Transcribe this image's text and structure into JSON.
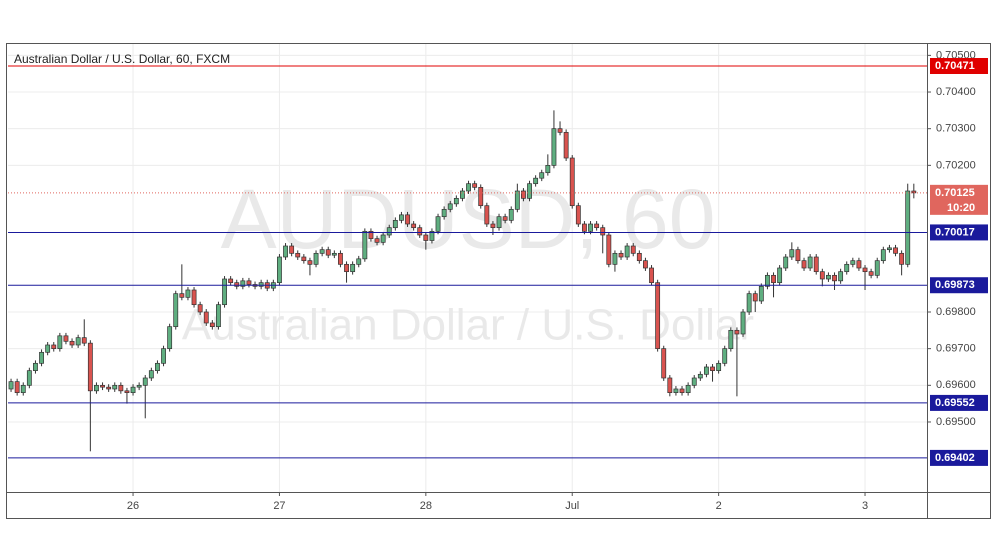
{
  "chart_data": {
    "type": "candlestick",
    "title": "Australian Dollar / U.S. Dollar, 60, FXCM",
    "watermark": "AUDUSD, 60",
    "watermark_subtitle": "Australian Dollar / U.S. Dollar",
    "up_color": "#5fae80",
    "down_color": "#d9534f",
    "ylim": [
      0.69309,
      0.70531
    ],
    "xlim": [
      -0.5,
      150.16
    ],
    "yticks": [
      {
        "value": 0.705,
        "label": "0.70500"
      },
      {
        "value": 0.704,
        "label": "0.70400"
      },
      {
        "value": 0.703,
        "label": "0.70300"
      },
      {
        "value": 0.702,
        "label": "0.70200"
      },
      {
        "value": 0.698,
        "label": "0.69800"
      },
      {
        "value": 0.697,
        "label": "0.69700"
      },
      {
        "value": 0.696,
        "label": "0.69600"
      },
      {
        "value": 0.695,
        "label": "0.69500"
      }
    ],
    "xticks": [
      {
        "value": 20,
        "label": "26"
      },
      {
        "value": 44,
        "label": "27"
      },
      {
        "value": 68,
        "label": "28"
      },
      {
        "value": 92,
        "label": "Jul"
      },
      {
        "value": 116,
        "label": "2"
      },
      {
        "value": 140,
        "label": "3"
      }
    ],
    "grid": true,
    "levels": [
      {
        "value": 0.70471,
        "color": "#e00000"
      },
      {
        "value": 0.70017,
        "color": "#1a1a9c"
      },
      {
        "value": 0.69873,
        "color": "#1a1a9c"
      },
      {
        "value": 0.69552,
        "color": "#1a1a9c"
      },
      {
        "value": 0.69402,
        "color": "#1a1a9c"
      }
    ],
    "last_price": 0.70125,
    "last_price_color": "#e0665e",
    "countdown": "10:20",
    "ohlc": [
      [
        0.6959,
        0.69618,
        0.69582,
        0.6961
      ],
      [
        0.6961,
        0.69618,
        0.69572,
        0.6958
      ],
      [
        0.6958,
        0.69608,
        0.69572,
        0.696
      ],
      [
        0.696,
        0.69648,
        0.69592,
        0.6964
      ],
      [
        0.6964,
        0.69668,
        0.69632,
        0.6966
      ],
      [
        0.6966,
        0.69698,
        0.69652,
        0.6969
      ],
      [
        0.6969,
        0.69718,
        0.69682,
        0.6971
      ],
      [
        0.6971,
        0.69718,
        0.69692,
        0.697
      ],
      [
        0.697,
        0.69743,
        0.69692,
        0.69735
      ],
      [
        0.69735,
        0.69743,
        0.69712,
        0.6972
      ],
      [
        0.6972,
        0.69728,
        0.69702,
        0.6971
      ],
      [
        0.6971,
        0.69738,
        0.69702,
        0.6973
      ],
      [
        0.6973,
        0.6978,
        0.69707,
        0.69715
      ],
      [
        0.69715,
        0.69723,
        0.6942,
        0.69585
      ],
      [
        0.69585,
        0.69608,
        0.69577,
        0.696
      ],
      [
        0.696,
        0.69608,
        0.69587,
        0.69595
      ],
      [
        0.69595,
        0.69603,
        0.69582,
        0.6959
      ],
      [
        0.6959,
        0.69608,
        0.69582,
        0.696
      ],
      [
        0.696,
        0.69608,
        0.69577,
        0.69585
      ],
      [
        0.69585,
        0.69593,
        0.6955,
        0.6958
      ],
      [
        0.6958,
        0.69603,
        0.69572,
        0.69595
      ],
      [
        0.69595,
        0.69608,
        0.69587,
        0.696
      ],
      [
        0.696,
        0.69628,
        0.6951,
        0.6962
      ],
      [
        0.6962,
        0.69648,
        0.69612,
        0.6964
      ],
      [
        0.6964,
        0.69668,
        0.69632,
        0.6966
      ],
      [
        0.6966,
        0.69708,
        0.69652,
        0.697
      ],
      [
        0.697,
        0.69768,
        0.69692,
        0.6976
      ],
      [
        0.6976,
        0.69858,
        0.69752,
        0.6985
      ],
      [
        0.6985,
        0.6993,
        0.69832,
        0.6984
      ],
      [
        0.6984,
        0.69868,
        0.69832,
        0.6986
      ],
      [
        0.6986,
        0.69868,
        0.69812,
        0.6982
      ],
      [
        0.6982,
        0.69828,
        0.69792,
        0.698
      ],
      [
        0.698,
        0.69808,
        0.69762,
        0.6977
      ],
      [
        0.6977,
        0.69778,
        0.69752,
        0.6976
      ],
      [
        0.6976,
        0.69828,
        0.69752,
        0.6982
      ],
      [
        0.6982,
        0.69898,
        0.69812,
        0.6989
      ],
      [
        0.6989,
        0.69898,
        0.69872,
        0.6988
      ],
      [
        0.6988,
        0.69888,
        0.69862,
        0.6987
      ],
      [
        0.6987,
        0.69893,
        0.69862,
        0.69885
      ],
      [
        0.69885,
        0.69893,
        0.69867,
        0.69875
      ],
      [
        0.69875,
        0.69883,
        0.69862,
        0.6987
      ],
      [
        0.6987,
        0.69888,
        0.69862,
        0.6988
      ],
      [
        0.6988,
        0.69888,
        0.69857,
        0.69865
      ],
      [
        0.69865,
        0.69888,
        0.69857,
        0.6988
      ],
      [
        0.6988,
        0.69958,
        0.69872,
        0.6995
      ],
      [
        0.6995,
        0.69988,
        0.69942,
        0.6998
      ],
      [
        0.6998,
        0.69988,
        0.69952,
        0.6996
      ],
      [
        0.6996,
        0.69968,
        0.69942,
        0.6995
      ],
      [
        0.6995,
        0.69958,
        0.69932,
        0.6994
      ],
      [
        0.6994,
        0.69948,
        0.699,
        0.6993
      ],
      [
        0.6993,
        0.69968,
        0.69922,
        0.6996
      ],
      [
        0.6996,
        0.69978,
        0.69952,
        0.6997
      ],
      [
        0.6997,
        0.69978,
        0.69947,
        0.69955
      ],
      [
        0.69955,
        0.69968,
        0.69947,
        0.6996
      ],
      [
        0.6996,
        0.69968,
        0.69922,
        0.6993
      ],
      [
        0.6993,
        0.69938,
        0.6988,
        0.6991
      ],
      [
        0.6991,
        0.69938,
        0.69902,
        0.6993
      ],
      [
        0.6993,
        0.69953,
        0.69922,
        0.69945
      ],
      [
        0.69945,
        0.70028,
        0.69937,
        0.7002
      ],
      [
        0.7002,
        0.70028,
        0.69992,
        0.7
      ],
      [
        0.7,
        0.70008,
        0.69982,
        0.6999
      ],
      [
        0.6999,
        0.70018,
        0.69982,
        0.7001
      ],
      [
        0.7001,
        0.70038,
        0.70002,
        0.7003
      ],
      [
        0.7003,
        0.70058,
        0.70022,
        0.7005
      ],
      [
        0.7005,
        0.70073,
        0.70042,
        0.70065
      ],
      [
        0.70065,
        0.70073,
        0.70032,
        0.7004
      ],
      [
        0.7004,
        0.70048,
        0.70022,
        0.7003
      ],
      [
        0.7003,
        0.70038,
        0.70002,
        0.7001
      ],
      [
        0.7001,
        0.70018,
        0.6997,
        0.69995
      ],
      [
        0.69995,
        0.70028,
        0.69987,
        0.7002
      ],
      [
        0.7002,
        0.70068,
        0.70012,
        0.7006
      ],
      [
        0.7006,
        0.70088,
        0.70052,
        0.7008
      ],
      [
        0.7008,
        0.70103,
        0.70072,
        0.70095
      ],
      [
        0.70095,
        0.70118,
        0.70087,
        0.7011
      ],
      [
        0.7011,
        0.70138,
        0.70102,
        0.7013
      ],
      [
        0.7013,
        0.70158,
        0.70122,
        0.7015
      ],
      [
        0.7015,
        0.70158,
        0.70132,
        0.7014
      ],
      [
        0.7014,
        0.70148,
        0.70082,
        0.7009
      ],
      [
        0.7009,
        0.70098,
        0.70032,
        0.7004
      ],
      [
        0.7004,
        0.70048,
        0.7001,
        0.7003
      ],
      [
        0.7003,
        0.70068,
        0.70022,
        0.7006
      ],
      [
        0.7006,
        0.70068,
        0.70042,
        0.7005
      ],
      [
        0.7005,
        0.70088,
        0.70042,
        0.7008
      ],
      [
        0.7008,
        0.7015,
        0.70072,
        0.7013
      ],
      [
        0.7013,
        0.70138,
        0.70102,
        0.7011
      ],
      [
        0.7011,
        0.70158,
        0.70102,
        0.7015
      ],
      [
        0.7015,
        0.70173,
        0.70142,
        0.70165
      ],
      [
        0.70165,
        0.70188,
        0.70157,
        0.7018
      ],
      [
        0.7018,
        0.7023,
        0.70172,
        0.702
      ],
      [
        0.702,
        0.7035,
        0.70192,
        0.703
      ],
      [
        0.703,
        0.7032,
        0.70282,
        0.7029
      ],
      [
        0.7029,
        0.70298,
        0.70212,
        0.7022
      ],
      [
        0.7022,
        0.70228,
        0.70082,
        0.7009
      ],
      [
        0.7009,
        0.70098,
        0.70032,
        0.7004
      ],
      [
        0.7004,
        0.70048,
        0.70012,
        0.7002
      ],
      [
        0.7002,
        0.70048,
        0.70012,
        0.7004
      ],
      [
        0.7004,
        0.70048,
        0.70022,
        0.7003
      ],
      [
        0.7003,
        0.70038,
        0.6996,
        0.7001
      ],
      [
        0.7001,
        0.70018,
        0.69922,
        0.6993
      ],
      [
        0.6993,
        0.69968,
        0.6991,
        0.6996
      ],
      [
        0.6996,
        0.69968,
        0.69942,
        0.6995
      ],
      [
        0.6995,
        0.69988,
        0.69942,
        0.6998
      ],
      [
        0.6998,
        0.69988,
        0.69952,
        0.6996
      ],
      [
        0.6996,
        0.69968,
        0.69932,
        0.6994
      ],
      [
        0.6994,
        0.69948,
        0.69912,
        0.6992
      ],
      [
        0.6992,
        0.69928,
        0.69872,
        0.6988
      ],
      [
        0.6988,
        0.69888,
        0.69692,
        0.697
      ],
      [
        0.697,
        0.69708,
        0.69612,
        0.6962
      ],
      [
        0.6962,
        0.69628,
        0.6957,
        0.6958
      ],
      [
        0.6958,
        0.69598,
        0.69572,
        0.6959
      ],
      [
        0.6959,
        0.69598,
        0.69572,
        0.6958
      ],
      [
        0.6958,
        0.69608,
        0.69572,
        0.696
      ],
      [
        0.696,
        0.69628,
        0.69592,
        0.6962
      ],
      [
        0.6962,
        0.69638,
        0.69612,
        0.6963
      ],
      [
        0.6963,
        0.69658,
        0.69622,
        0.6965
      ],
      [
        0.6965,
        0.69658,
        0.6961,
        0.6964
      ],
      [
        0.6964,
        0.69668,
        0.69632,
        0.6966
      ],
      [
        0.6966,
        0.69708,
        0.69652,
        0.697
      ],
      [
        0.697,
        0.69758,
        0.69692,
        0.6975
      ],
      [
        0.6975,
        0.69758,
        0.6957,
        0.6974
      ],
      [
        0.6974,
        0.69808,
        0.69732,
        0.698
      ],
      [
        0.698,
        0.69858,
        0.69792,
        0.6985
      ],
      [
        0.6985,
        0.69858,
        0.698,
        0.6983
      ],
      [
        0.6983,
        0.69878,
        0.69822,
        0.6987
      ],
      [
        0.6987,
        0.69908,
        0.69862,
        0.699
      ],
      [
        0.699,
        0.69908,
        0.6984,
        0.6988
      ],
      [
        0.6988,
        0.69928,
        0.69872,
        0.6992
      ],
      [
        0.6992,
        0.69958,
        0.69912,
        0.6995
      ],
      [
        0.6995,
        0.6999,
        0.69942,
        0.6997
      ],
      [
        0.6997,
        0.69978,
        0.69932,
        0.6994
      ],
      [
        0.6994,
        0.69948,
        0.69912,
        0.6992
      ],
      [
        0.6992,
        0.69958,
        0.69912,
        0.6995
      ],
      [
        0.6995,
        0.69958,
        0.69902,
        0.6991
      ],
      [
        0.6991,
        0.69918,
        0.6987,
        0.6989
      ],
      [
        0.6989,
        0.69908,
        0.69882,
        0.699
      ],
      [
        0.699,
        0.69908,
        0.6986,
        0.69885
      ],
      [
        0.69885,
        0.69918,
        0.69877,
        0.6991
      ],
      [
        0.6991,
        0.69938,
        0.69902,
        0.6993
      ],
      [
        0.6993,
        0.69948,
        0.69922,
        0.6994
      ],
      [
        0.6994,
        0.69948,
        0.69912,
        0.6992
      ],
      [
        0.6992,
        0.69928,
        0.6986,
        0.6991
      ],
      [
        0.6991,
        0.69918,
        0.69892,
        0.699
      ],
      [
        0.699,
        0.69948,
        0.69892,
        0.6994
      ],
      [
        0.6994,
        0.69978,
        0.69932,
        0.6997
      ],
      [
        0.6997,
        0.69983,
        0.69962,
        0.69975
      ],
      [
        0.69975,
        0.69983,
        0.69952,
        0.6996
      ],
      [
        0.6996,
        0.69968,
        0.699,
        0.6993
      ],
      [
        0.6993,
        0.7015,
        0.69922,
        0.7013
      ],
      [
        0.7013,
        0.7015,
        0.7011,
        0.70125
      ]
    ]
  }
}
